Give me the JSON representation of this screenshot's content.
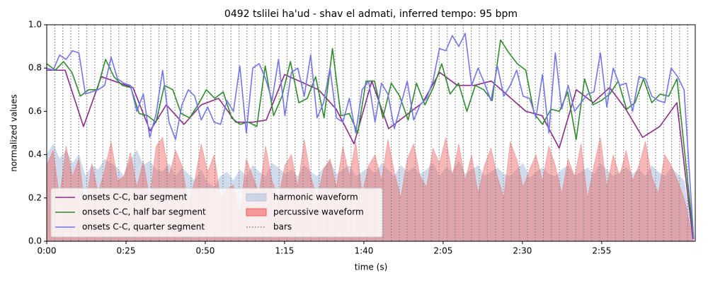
{
  "chart_data": {
    "type": "line",
    "title": "0492 tslilei ha'ud - shav el admati, inferred tempo: 95 bpm",
    "x_label": "time (s)",
    "y_label": "normalized values",
    "xlim": [
      0,
      204.5
    ],
    "ylim": [
      0,
      1
    ],
    "xticks": [
      {
        "value": 0,
        "label": "0:00"
      },
      {
        "value": 25,
        "label": "0:25"
      },
      {
        "value": 50,
        "label": "0:50"
      },
      {
        "value": 75,
        "label": "1:15"
      },
      {
        "value": 100,
        "label": "1:40"
      },
      {
        "value": 125,
        "label": "2:05"
      },
      {
        "value": 150,
        "label": "2:30"
      },
      {
        "value": 175,
        "label": "2:55"
      }
    ],
    "yticks": [
      {
        "value": 0,
        "label": "0.0"
      },
      0.2,
      0.4,
      0.6,
      0.8,
      {
        "value": 1,
        "label": "1.0"
      }
    ],
    "legend": "lower left",
    "series": [
      {
        "name": "onsets C-C, bar segment",
        "style": "line",
        "color": "#8a2b8a",
        "x": [
          0,
          5.8,
          11.6,
          17.2,
          27.2,
          32.6,
          37.7,
          43.3,
          48.7,
          54.2,
          59.6,
          65,
          69.2,
          75,
          85.7,
          91.3,
          96.9,
          102.5,
          107.8,
          118.5,
          123.9,
          129.5,
          134.8,
          140.2,
          151.1,
          156.2,
          161.6,
          167,
          172.3,
          177.5,
          182.6,
          187.9,
          193.3,
          198.7,
          203.8
        ],
        "values": [
          0.79,
          0.79,
          0.53,
          0.76,
          0.71,
          0.51,
          0.63,
          0.54,
          0.63,
          0.66,
          0.55,
          0.55,
          0.56,
          0.77,
          0.7,
          0.61,
          0.45,
          0.74,
          0.52,
          0.64,
          0.78,
          0.72,
          0.72,
          0.74,
          0.6,
          0.58,
          0.43,
          0.7,
          0.64,
          0.71,
          0.61,
          0.48,
          0.53,
          0.64,
          0.01
        ]
      },
      {
        "name": "onsets C-C, half bar segment",
        "style": "line",
        "color": "#2e8b2e",
        "x": [
          0,
          2.65,
          5.3,
          7.95,
          10.6,
          13.25,
          15.9,
          18.55,
          21.2,
          23.85,
          26.5,
          29.15,
          31.8,
          34.45,
          37.1,
          39.75,
          42.4,
          45.05,
          47.7,
          50.35,
          53,
          55.65,
          58.3,
          60.95,
          63.6,
          66.25,
          68.9,
          71.55,
          74.2,
          76.85,
          79.5,
          82.15,
          84.8,
          87.45,
          90.1,
          92.75,
          95.4,
          98.05,
          100.7,
          103.35,
          106,
          108.65,
          111.3,
          113.95,
          116.6,
          119.25,
          121.9,
          124.55,
          127.2,
          129.85,
          132.5,
          135.15,
          137.8,
          140.45,
          143.1,
          145.75,
          148.4,
          151.05,
          153.7,
          156.35,
          159,
          161.65,
          164.3,
          166.95,
          169.6,
          172.25,
          174.9,
          177.55,
          180.2,
          182.85,
          185.5,
          188.15,
          190.8,
          193.45,
          196.1,
          198.75,
          204
        ],
        "values": [
          0.82,
          0.79,
          0.83,
          0.78,
          0.67,
          0.7,
          0.7,
          0.84,
          0.76,
          0.72,
          0.71,
          0.59,
          0.58,
          0.55,
          0.72,
          0.7,
          0.59,
          0.57,
          0.63,
          0.7,
          0.66,
          0.69,
          0.57,
          0.54,
          0.55,
          0.53,
          0.81,
          0.58,
          0.67,
          0.83,
          0.64,
          0.66,
          0.76,
          0.57,
          0.89,
          0.58,
          0.59,
          0.5,
          0.74,
          0.74,
          0.57,
          0.73,
          0.67,
          0.56,
          0.73,
          0.63,
          0.71,
          0.82,
          0.68,
          0.73,
          0.6,
          0.72,
          0.7,
          0.65,
          0.93,
          0.87,
          0.82,
          0.79,
          0.59,
          0.54,
          0.61,
          0.6,
          0.69,
          0.47,
          0.75,
          0.63,
          0.65,
          0.68,
          0.74,
          0.61,
          0.64,
          0.75,
          0.64,
          0.68,
          0.67,
          0.75,
          0.01
        ]
      },
      {
        "name": "onsets C-C, quarter segment",
        "style": "line",
        "color": "#7474ee",
        "x": [
          0,
          2.03,
          4.06,
          6.09,
          8.12,
          10.15,
          12.18,
          14.21,
          16.24,
          18.27,
          20.3,
          22.33,
          24.36,
          26.39,
          28.42,
          30.45,
          32.48,
          34.51,
          36.54,
          38.57,
          40.6,
          42.63,
          44.66,
          46.69,
          48.72,
          50.75,
          52.78,
          54.81,
          56.84,
          58.87,
          60.9,
          62.93,
          64.96,
          66.99,
          69.02,
          71.05,
          73.08,
          75.11,
          77.14,
          79.17,
          81.2,
          83.23,
          85.26,
          87.29,
          89.32,
          91.35,
          93.38,
          95.41,
          97.44,
          99.47,
          101.5,
          103.53,
          105.56,
          107.59,
          109.62,
          111.65,
          113.68,
          115.71,
          117.74,
          119.77,
          121.8,
          123.83,
          125.86,
          127.89,
          129.92,
          131.95,
          133.98,
          136.01,
          138.04,
          140.07,
          142.1,
          144.13,
          146.16,
          148.19,
          150.22,
          152.25,
          154.28,
          156.31,
          158.34,
          160.37,
          162.4,
          164.43,
          166.46,
          168.49,
          170.52,
          172.55,
          174.58,
          176.61,
          178.64,
          180.67,
          182.7,
          184.73,
          186.76,
          188.79,
          190.82,
          192.85,
          194.88,
          196.91,
          198.94,
          200.97,
          204
        ],
        "values": [
          0.8,
          0.79,
          0.86,
          0.84,
          0.88,
          0.87,
          0.68,
          0.69,
          0.7,
          0.72,
          0.85,
          0.75,
          0.73,
          0.72,
          0.6,
          0.68,
          0.48,
          0.59,
          0.79,
          0.55,
          0.47,
          0.63,
          0.7,
          0.67,
          0.56,
          0.62,
          0.55,
          0.54,
          0.65,
          0.6,
          0.81,
          0.5,
          0.8,
          0.82,
          0.75,
          0.65,
          0.84,
          0.58,
          0.78,
          0.8,
          0.67,
          0.86,
          0.57,
          0.64,
          0.8,
          0.57,
          0.55,
          0.66,
          0.5,
          0.7,
          0.74,
          0.55,
          0.73,
          0.68,
          0.52,
          0.63,
          0.74,
          0.56,
          0.63,
          0.66,
          0.74,
          0.89,
          0.88,
          0.95,
          0.9,
          0.96,
          0.72,
          0.8,
          0.73,
          0.65,
          0.81,
          0.67,
          0.72,
          0.79,
          0.67,
          0.66,
          0.57,
          0.77,
          0.5,
          0.87,
          0.61,
          0.72,
          0.6,
          0.64,
          0.68,
          0.69,
          0.87,
          0.62,
          0.8,
          0.72,
          0.73,
          0.6,
          0.76,
          0.75,
          0.67,
          0.65,
          0.64,
          0.8,
          0.76,
          0.7,
          0.01
        ]
      },
      {
        "name": "harmonic waveform",
        "style": "area",
        "color": "#b0c4de",
        "x": [
          0,
          2.03,
          4.06,
          6.09,
          8.12,
          10.15,
          12.18,
          14.21,
          16.24,
          18.27,
          20.3,
          22.33,
          24.36,
          26.39,
          28.42,
          30.45,
          32.48,
          34.51,
          36.54,
          38.57,
          40.6,
          42.63,
          44.66,
          46.69,
          48.72,
          50.75,
          52.78,
          54.81,
          56.84,
          58.87,
          60.9,
          62.93,
          64.96,
          66.99,
          69.02,
          71.05,
          73.08,
          75.11,
          77.14,
          79.17,
          81.2,
          83.23,
          85.26,
          87.29,
          89.32,
          91.35,
          93.38,
          95.41,
          97.44,
          99.47,
          101.5,
          103.53,
          105.56,
          107.59,
          109.62,
          111.65,
          113.68,
          115.71,
          117.74,
          119.77,
          121.8,
          123.83,
          125.86,
          127.89,
          129.92,
          131.95,
          133.98,
          136.01,
          138.04,
          140.07,
          142.1,
          144.13,
          146.16,
          148.19,
          150.22,
          152.25,
          154.28,
          156.31,
          158.34,
          160.37,
          162.4,
          164.43,
          166.46,
          168.49,
          170.52,
          172.55,
          174.58,
          176.61,
          178.64,
          180.67,
          182.7,
          184.73,
          186.76,
          188.79,
          190.82,
          192.85,
          194.88,
          196.91,
          198.94,
          200.97,
          204
        ],
        "values": [
          0.4,
          0.45,
          0.38,
          0.42,
          0.36,
          0.4,
          0.3,
          0.35,
          0.33,
          0.38,
          0.36,
          0.34,
          0.3,
          0.38,
          0.42,
          0.35,
          0.37,
          0.33,
          0.32,
          0.36,
          0.3,
          0.34,
          0.31,
          0.28,
          0.33,
          0.27,
          0.25,
          0.3,
          0.32,
          0.28,
          0.33,
          0.3,
          0.35,
          0.32,
          0.3,
          0.36,
          0.34,
          0.31,
          0.33,
          0.3,
          0.35,
          0.32,
          0.3,
          0.34,
          0.37,
          0.31,
          0.33,
          0.35,
          0.3,
          0.32,
          0.34,
          0.31,
          0.36,
          0.33,
          0.3,
          0.35,
          0.32,
          0.34,
          0.31,
          0.33,
          0.36,
          0.3,
          0.34,
          0.32,
          0.37,
          0.31,
          0.33,
          0.35,
          0.3,
          0.32,
          0.34,
          0.31,
          0.3,
          0.33,
          0.36,
          0.29,
          0.32,
          0.34,
          0.31,
          0.3,
          0.33,
          0.35,
          0.3,
          0.32,
          0.34,
          0.31,
          0.36,
          0.33,
          0.3,
          0.32,
          0.34,
          0.31,
          0.33,
          0.3,
          0.35,
          0.32,
          0.3,
          0.34,
          0.31,
          0.28,
          0
        ]
      },
      {
        "name": "percussive waveform",
        "style": "area",
        "color": "#f06060",
        "x": [
          0,
          2.03,
          4.06,
          6.09,
          8.12,
          10.15,
          12.18,
          14.21,
          16.24,
          18.27,
          20.3,
          22.33,
          24.36,
          26.39,
          28.42,
          30.45,
          32.48,
          34.51,
          36.54,
          38.57,
          40.6,
          42.63,
          44.66,
          46.69,
          48.72,
          50.75,
          52.78,
          54.81,
          56.84,
          58.87,
          60.9,
          62.93,
          64.96,
          66.99,
          69.02,
          71.05,
          73.08,
          75.11,
          77.14,
          79.17,
          81.2,
          83.23,
          85.26,
          87.29,
          89.32,
          91.35,
          93.38,
          95.41,
          97.44,
          99.47,
          101.5,
          103.53,
          105.56,
          107.59,
          109.62,
          111.65,
          113.68,
          115.71,
          117.74,
          119.77,
          121.8,
          123.83,
          125.86,
          127.89,
          129.92,
          131.95,
          133.98,
          136.01,
          138.04,
          140.07,
          142.1,
          144.13,
          146.16,
          148.19,
          150.22,
          152.25,
          154.28,
          156.31,
          158.34,
          160.37,
          162.4,
          164.43,
          166.46,
          168.49,
          170.52,
          172.55,
          174.58,
          176.61,
          178.64,
          180.67,
          182.7,
          184.73,
          186.76,
          188.79,
          190.82,
          192.85,
          194.88,
          196.91,
          198.94,
          200.97,
          204
        ],
        "values": [
          0.35,
          0.42,
          0.2,
          0.44,
          0.3,
          0.38,
          0.15,
          0.36,
          0.22,
          0.33,
          0.46,
          0.28,
          0.3,
          0.41,
          0.25,
          0.37,
          0.2,
          0.44,
          0.48,
          0.3,
          0.42,
          0.35,
          0.18,
          0.28,
          0.45,
          0.32,
          0.4,
          0.2,
          0.24,
          0.26,
          0.12,
          0.38,
          0.3,
          0.22,
          0.44,
          0.28,
          0.2,
          0.35,
          0.4,
          0.25,
          0.47,
          0.3,
          0.2,
          0.33,
          0.38,
          0.25,
          0.44,
          0.3,
          0.46,
          0.22,
          0.35,
          0.4,
          0.28,
          0.47,
          0.32,
          0.2,
          0.38,
          0.45,
          0.3,
          0.25,
          0.43,
          0.36,
          0.48,
          0.3,
          0.45,
          0.28,
          0.4,
          0.22,
          0.35,
          0.43,
          0.3,
          0.2,
          0.46,
          0.38,
          0.25,
          0.33,
          0.4,
          0.28,
          0.44,
          0.35,
          0.22,
          0.38,
          0.3,
          0.45,
          0.2,
          0.35,
          0.48,
          0.25,
          0.4,
          0.3,
          0.42,
          0.28,
          0.35,
          0.46,
          0.3,
          0.22,
          0.4,
          0.35,
          0.28,
          0.2,
          0
        ]
      }
    ],
    "bars": {
      "name": "bars",
      "color": "#808080",
      "x": [
        0,
        2.53,
        5.05,
        7.58,
        10.1,
        12.63,
        15.16,
        17.68,
        20.21,
        22.73,
        25.26,
        27.79,
        30.31,
        32.84,
        35.36,
        37.89,
        40.42,
        42.94,
        45.47,
        47.99,
        50.52,
        53.05,
        55.57,
        58.1,
        60.62,
        63.15,
        65.68,
        68.2,
        70.73,
        73.25,
        75.78,
        78.31,
        80.83,
        83.36,
        85.88,
        88.41,
        90.94,
        93.46,
        95.99,
        98.51,
        101.04,
        103.57,
        106.09,
        108.62,
        111.14,
        113.67,
        116.2,
        118.72,
        121.25,
        123.77,
        126.3,
        128.83,
        131.35,
        133.88,
        136.4,
        138.93,
        141.46,
        143.98,
        146.51,
        149.03,
        151.56,
        154.09,
        156.61,
        159.14,
        161.66,
        164.19,
        166.72,
        169.24,
        171.77,
        174.29,
        176.82,
        179.35,
        181.87,
        184.4,
        186.92,
        189.45,
        191.98,
        194.5,
        197.03,
        199.55,
        202.08
      ]
    }
  }
}
